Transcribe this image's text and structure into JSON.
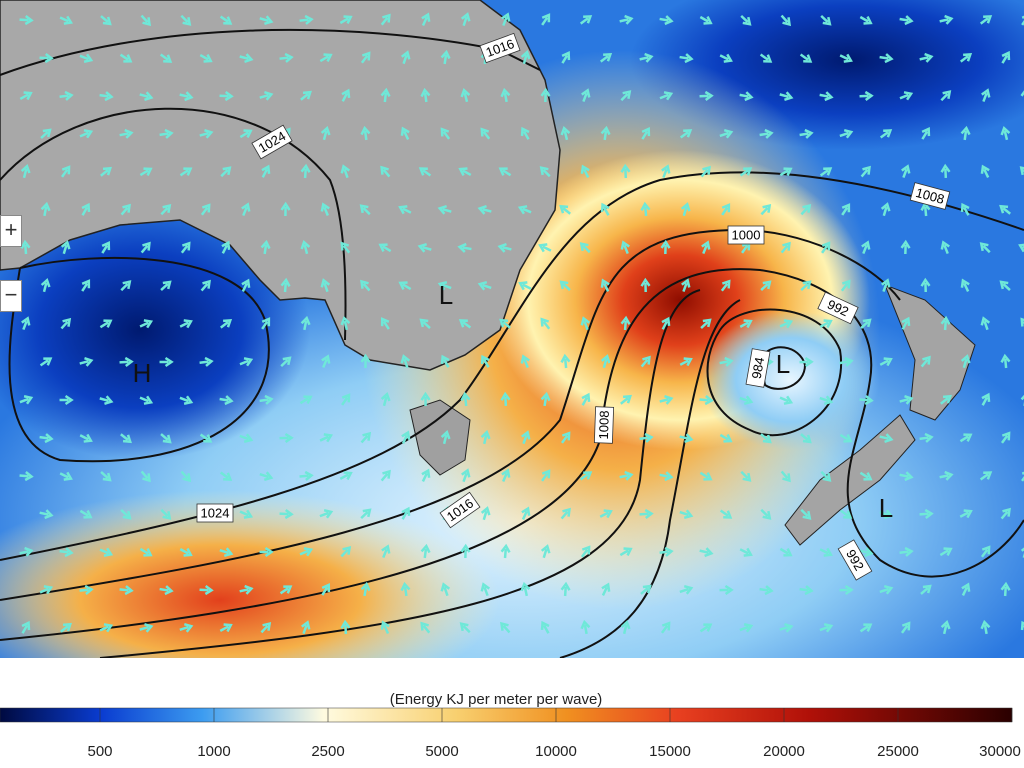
{
  "isobars": [
    {
      "label": "1016"
    },
    {
      "label": "1024"
    },
    {
      "label": "1008"
    },
    {
      "label": "1000"
    },
    {
      "label": "992"
    },
    {
      "label": "984"
    },
    {
      "label": "1008"
    },
    {
      "label": "1016"
    },
    {
      "label": "1024"
    },
    {
      "label": "992"
    }
  ],
  "pressure_centres": [
    {
      "label": "H"
    },
    {
      "label": "L"
    },
    {
      "label": "L"
    },
    {
      "label": "L"
    }
  ],
  "zoom": {
    "in": "+",
    "out": "−"
  },
  "colorbar": {
    "label": "(Energy KJ per meter per wave)",
    "ticks": [
      "500",
      "1000",
      "2500",
      "5000",
      "10000",
      "15000",
      "20000",
      "25000",
      "30000"
    ]
  }
}
